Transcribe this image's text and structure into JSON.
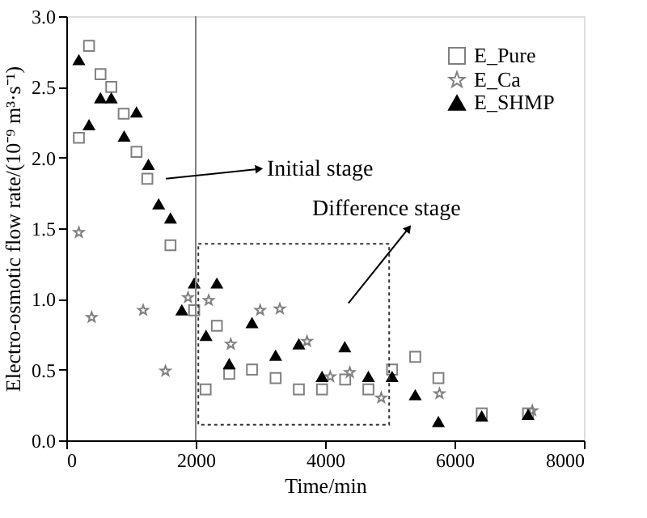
{
  "chart_data": {
    "type": "scatter",
    "xlabel": "Time/min",
    "ylabel": "Electro-osmotic flow rate/(10⁻⁹ m³·s⁻¹)",
    "xlim": [
      0,
      8000
    ],
    "xticks": [
      0,
      2000,
      4000,
      6000,
      8000
    ],
    "ylim": [
      0,
      3
    ],
    "yticks": [
      {
        "value": 0,
        "label": "0.0"
      },
      {
        "value": 0.5,
        "label": "0.5"
      },
      {
        "value": 1,
        "label": "1.0"
      },
      {
        "value": 1.5,
        "label": "1.5"
      },
      {
        "value": 2,
        "label": "2.0"
      },
      {
        "value": 2.5,
        "label": "2.5"
      },
      {
        "value": 3,
        "label": "3.0"
      }
    ],
    "legend": "top right",
    "grid": false,
    "ref_lines": [
      {
        "axis": "x",
        "value": 2000,
        "color": "#808080"
      }
    ],
    "annotations": [
      "Initial stage",
      "Difference stage"
    ],
    "series": [
      {
        "name": "E_Pure",
        "color": "#808080",
        "marker": "square",
        "x": [
          194,
          351,
          528,
          695,
          887,
          1085,
          1252,
          1610,
          1976,
          2153,
          2327,
          2518,
          2870,
          3235,
          3594,
          3952,
          4310,
          4669,
          5035,
          5393,
          5751,
          6421,
          7137
        ],
        "values": [
          2.14,
          2.79,
          2.59,
          2.5,
          2.31,
          2.04,
          1.85,
          1.38,
          0.92,
          0.36,
          0.81,
          0.47,
          0.5,
          0.44,
          0.36,
          0.36,
          0.43,
          0.36,
          0.5,
          0.59,
          0.44,
          0.19,
          0.19
        ]
      },
      {
        "name": "E_Ca",
        "color": "#808080",
        "marker": "star",
        "x": [
          194,
          392,
          1188,
          1532,
          1881,
          2201,
          2542,
          2996,
          3300,
          3720,
          4079,
          4382,
          4867,
          5768,
          7202
        ],
        "values": [
          1.47,
          0.87,
          0.92,
          0.49,
          1.01,
          0.99,
          0.68,
          0.92,
          0.93,
          0.7,
          0.45,
          0.48,
          0.3,
          0.33,
          0.21
        ]
      },
      {
        "name": "E_SHMP",
        "color": "#000000",
        "marker": "triangle",
        "x": [
          194,
          351,
          528,
          695,
          894,
          1085,
          1269,
          1427,
          1610,
          1785,
          1976,
          2160,
          2327,
          2518,
          2870,
          3235,
          3594,
          3952,
          4304,
          4669,
          5035,
          5393,
          5751,
          6421,
          7137
        ],
        "values": [
          2.69,
          2.23,
          2.42,
          2.42,
          2.15,
          2.32,
          1.95,
          1.67,
          1.57,
          0.92,
          1.11,
          0.74,
          1.11,
          0.54,
          0.83,
          0.6,
          0.68,
          0.45,
          0.66,
          0.45,
          0.45,
          0.32,
          0.13,
          0.17,
          0.18
        ]
      }
    ]
  }
}
